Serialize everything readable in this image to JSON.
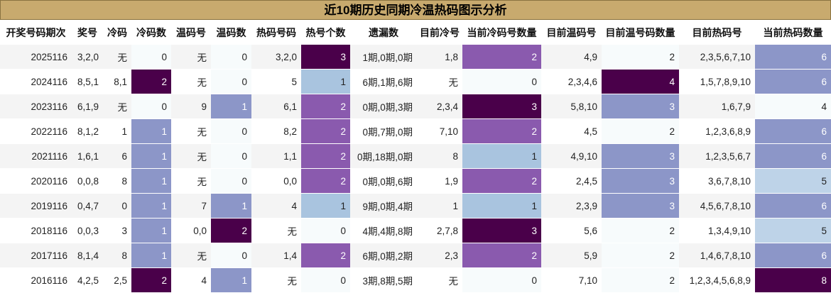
{
  "title": "近10期历史同期冷温热码图示分析",
  "headers": [
    "开奖号码期次",
    "奖号",
    "冷码",
    "冷码数",
    "温码号",
    "温码数",
    "热码号码",
    "热号个数",
    "遗漏数",
    "目前冷号",
    "当前冷码号数量",
    "目前温码号",
    "目前温号码数量",
    "目前热码号",
    "当前热码数量"
  ],
  "rows": [
    [
      "2025116",
      "3,2,0",
      "无",
      "0",
      "无",
      "0",
      "3,2,0",
      "3",
      "1期,0期,0期",
      "1,8",
      "2",
      "4,9",
      "2",
      "2,3,5,6,7,10",
      "6"
    ],
    [
      "2024116",
      "8,5,1",
      "8,1",
      "2",
      "无",
      "0",
      "5",
      "1",
      "6期,1期,6期",
      "无",
      "0",
      "2,3,4,6",
      "4",
      "1,5,7,8,9,10",
      "6"
    ],
    [
      "2023116",
      "6,1,9",
      "无",
      "0",
      "9",
      "1",
      "6,1",
      "2",
      "0期,0期,3期",
      "2,3,4",
      "3",
      "5,8,10",
      "3",
      "1,6,7,9",
      "4"
    ],
    [
      "2022116",
      "8,1,2",
      "1",
      "1",
      "无",
      "0",
      "8,2",
      "2",
      "0期,7期,0期",
      "7,10",
      "2",
      "4,5",
      "2",
      "1,2,3,6,8,9",
      "6"
    ],
    [
      "2021116",
      "1,6,1",
      "6",
      "1",
      "无",
      "0",
      "1,1",
      "2",
      "0期,18期,0期",
      "8",
      "1",
      "4,9,10",
      "3",
      "1,2,3,5,6,7",
      "6"
    ],
    [
      "2020116",
      "0,0,8",
      "8",
      "1",
      "无",
      "0",
      "0,0",
      "2",
      "0期,0期,6期",
      "1,9",
      "2",
      "2,4,5",
      "3",
      "3,6,7,8,10",
      "5"
    ],
    [
      "2019116",
      "0,4,7",
      "0",
      "1",
      "7",
      "1",
      "4",
      "1",
      "9期,0期,4期",
      "1",
      "1",
      "2,3,9",
      "3",
      "4,5,6,7,8,10",
      "6"
    ],
    [
      "2018116",
      "0,0,3",
      "3",
      "1",
      "0,0",
      "2",
      "无",
      "0",
      "4期,4期,8期",
      "2,7,8",
      "3",
      "5,6",
      "2",
      "1,3,4,9,10",
      "5"
    ],
    [
      "2017116",
      "8,1,4",
      "8",
      "1",
      "无",
      "0",
      "1,4",
      "2",
      "6期,0期,2期",
      "2,3",
      "2",
      "5,9",
      "2",
      "1,4,6,7,8,10",
      "6"
    ],
    [
      "2016116",
      "4,2,5",
      "2,5",
      "2",
      "4",
      "1",
      "无",
      "0",
      "3期,8期,5期",
      "无",
      "0",
      "7,10",
      "2",
      "1,2,3,4,5,6,8,9",
      "8"
    ]
  ],
  "colors": {
    "title_bg": "#c8aa6e",
    "level1": "#8c96c8",
    "level2": "#8a5aae",
    "level3": "#4a004a",
    "blue_light": "#a9c4df",
    "blue_pale": "#bed3e8",
    "near_white": "#f7fbfc"
  },
  "cell_levels": {
    "cold_count": [
      "w",
      "3",
      "w",
      "1",
      "1",
      "1",
      "1",
      "1",
      "1",
      "3"
    ],
    "warm_count": [
      "w",
      "w",
      "1",
      "w",
      "w",
      "w",
      "1",
      "3",
      "w",
      "1"
    ],
    "hot_count": [
      "3",
      "b",
      "2",
      "2",
      "2",
      "2",
      "b",
      "w",
      "2",
      "w"
    ],
    "cur_cold": [
      "2",
      "w",
      "3",
      "2",
      "b",
      "2",
      "b",
      "3",
      "2",
      "w"
    ],
    "cur_warm": [
      "w",
      "3",
      "1",
      "w",
      "1",
      "1",
      "1",
      "w",
      "w",
      "w"
    ],
    "cur_hot": [
      "1",
      "1",
      "w",
      "1",
      "1",
      "l",
      "1",
      "l",
      "1",
      "3"
    ]
  }
}
